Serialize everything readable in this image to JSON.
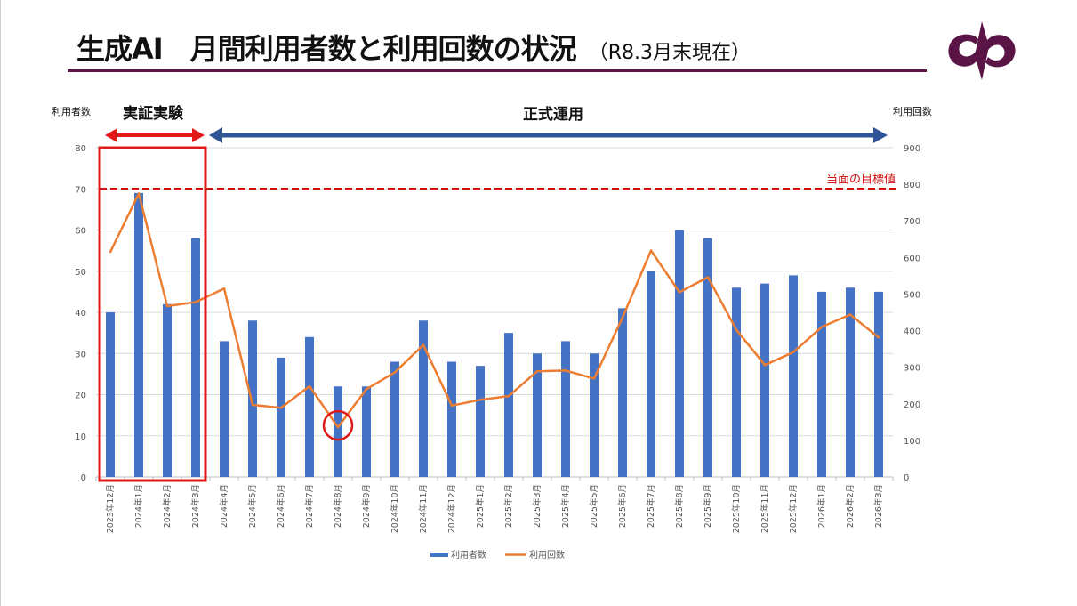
{
  "header": {
    "title": "生成AI　月間利用者数と利用回数の状況",
    "subtitle": "（R8.3月末現在）"
  },
  "logo": {
    "name": "organization-logo",
    "color": "#5a1446"
  },
  "annotations": {
    "pilot_label": "実証実験",
    "production_label": "正式運用",
    "target_label": "当面の目標値",
    "target_value_users": 70,
    "pilot_color": "#e01818",
    "production_color": "#2f5597",
    "highlight_category": "2024年8月"
  },
  "chart_data": {
    "type": "bar+line",
    "categories": [
      "2023年12月",
      "2024年1月",
      "2024年2月",
      "2024年3月",
      "2024年4月",
      "2024年5月",
      "2024年6月",
      "2024年7月",
      "2024年8月",
      "2024年9月",
      "2024年10月",
      "2024年11月",
      "2024年12月",
      "2025年1月",
      "2025年2月",
      "2025年3月",
      "2025年4月",
      "2025年5月",
      "2025年6月",
      "2025年7月",
      "2025年8月",
      "2025年9月",
      "2025年10月",
      "2025年11月",
      "2025年12月",
      "2026年1月",
      "2026年2月",
      "2026年3月"
    ],
    "series": [
      {
        "name": "利用者数",
        "type": "bar",
        "axis": "left",
        "color": "#4472c4",
        "values": [
          40,
          69,
          42,
          58,
          33,
          38,
          29,
          34,
          22,
          22,
          28,
          38,
          28,
          27,
          35,
          30,
          33,
          30,
          41,
          50,
          60,
          58,
          46,
          47,
          49,
          45,
          46,
          45
        ]
      },
      {
        "name": "利用回数",
        "type": "line",
        "axis": "right",
        "color": "#ed7d31",
        "values": [
          615,
          775,
          467,
          478,
          515,
          197,
          189,
          248,
          136,
          240,
          286,
          361,
          195,
          211,
          221,
          289,
          291,
          269,
          436,
          619,
          505,
          546,
          402,
          306,
          341,
          410,
          444,
          381
        ]
      }
    ],
    "y_left": {
      "label": "利用者数",
      "min": 0,
      "max": 80,
      "ticks": [
        "0",
        "10",
        "20",
        "30",
        "40",
        "50",
        "60",
        "70",
        "80"
      ]
    },
    "y_right": {
      "label": "利用回数",
      "min": 0,
      "max": 900,
      "ticks": [
        "0",
        "100",
        "200",
        "300",
        "400",
        "500",
        "600",
        "700",
        "800",
        "900"
      ]
    },
    "grid": true,
    "legend": {
      "position": "bottom",
      "entries": [
        "利用者数",
        "利用回数"
      ]
    }
  }
}
